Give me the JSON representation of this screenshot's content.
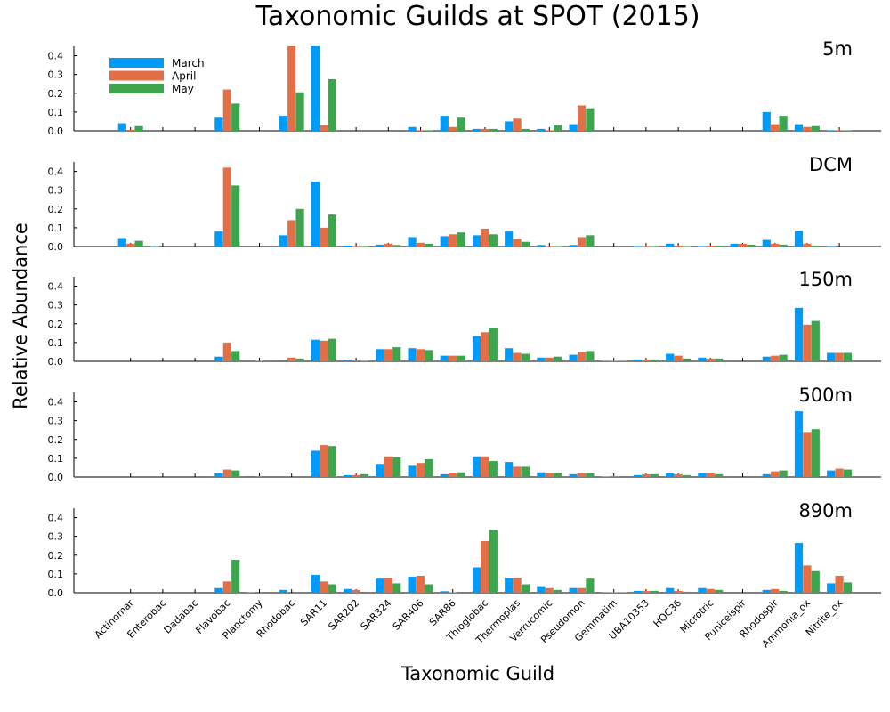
{
  "chart_data": {
    "type": "bar",
    "title": "Taxonomic Guilds at SPOT (2015)",
    "xlabel": "Taxonomic Guild",
    "ylabel": "Relative Abundance",
    "ylim": [
      0,
      0.45
    ],
    "yticks": [
      0.0,
      0.1,
      0.2,
      0.3,
      0.4
    ],
    "ytick_labels": [
      "0.0",
      "0.1",
      "0.2",
      "0.3",
      "0.4"
    ],
    "legend_position": "top-left",
    "categories": [
      "Actinomar",
      "Enterobac",
      "Dadabac",
      "Flavobac",
      "Planctomy",
      "Rhodobac",
      "SAR11",
      "SAR202",
      "SAR324",
      "SAR406",
      "SAR86",
      "Thioglobac",
      "Thermoplas",
      "Verrucomic",
      "Pseudomon",
      "Gemmatim",
      "UBA10353",
      "HOC36",
      "Microtric",
      "Puniceispir",
      "Rhodospir",
      "Ammonia_ox",
      "Nitrite_ox"
    ],
    "series": [
      {
        "name": "March",
        "color": "#009af9"
      },
      {
        "name": "April",
        "color": "#e26f46"
      },
      {
        "name": "May",
        "color": "#3ea44e"
      }
    ],
    "panels": [
      {
        "label": "5m",
        "values": {
          "March": [
            0.04,
            0.0,
            0.0,
            0.07,
            0.0,
            0.08,
            0.45,
            0.0,
            0.0,
            0.02,
            0.08,
            0.01,
            0.05,
            0.01,
            0.035,
            0.0,
            0.0,
            0.0,
            0.0,
            0.0,
            0.1,
            0.035,
            0.003
          ],
          "April": [
            0.005,
            0.0,
            0.0,
            0.22,
            0.0,
            0.45,
            0.03,
            0.0,
            0.0,
            0.003,
            0.02,
            0.01,
            0.065,
            0.003,
            0.135,
            0.0,
            0.0,
            0.0,
            0.0,
            0.0,
            0.035,
            0.02,
            0.003
          ],
          "May": [
            0.025,
            0.0,
            0.0,
            0.145,
            0.0,
            0.205,
            0.275,
            0.0,
            0.0,
            0.003,
            0.07,
            0.01,
            0.01,
            0.03,
            0.12,
            0.0,
            0.0,
            0.0,
            0.0,
            0.0,
            0.08,
            0.025,
            0.002
          ]
        }
      },
      {
        "label": "DCM",
        "values": {
          "March": [
            0.045,
            0.002,
            0.0,
            0.08,
            0.0,
            0.06,
            0.345,
            0.005,
            0.01,
            0.05,
            0.055,
            0.06,
            0.08,
            0.008,
            0.008,
            0.0,
            0.003,
            0.015,
            0.003,
            0.015,
            0.035,
            0.085,
            0.003
          ],
          "April": [
            0.015,
            0.0,
            0.0,
            0.42,
            0.0,
            0.14,
            0.1,
            0.003,
            0.015,
            0.02,
            0.065,
            0.095,
            0.04,
            0.003,
            0.05,
            0.0,
            0.003,
            0.005,
            0.005,
            0.015,
            0.015,
            0.015,
            0.0
          ],
          "May": [
            0.03,
            0.0,
            0.0,
            0.325,
            0.0,
            0.2,
            0.17,
            0.003,
            0.008,
            0.015,
            0.075,
            0.065,
            0.025,
            0.003,
            0.06,
            0.0,
            0.003,
            0.003,
            0.005,
            0.01,
            0.01,
            0.005,
            0.0
          ]
        }
      },
      {
        "label": "150m",
        "values": {
          "March": [
            0.0,
            0.0,
            0.0,
            0.025,
            0.0,
            0.005,
            0.115,
            0.008,
            0.065,
            0.07,
            0.03,
            0.135,
            0.07,
            0.02,
            0.035,
            0.003,
            0.01,
            0.04,
            0.02,
            0.0,
            0.025,
            0.285,
            0.045
          ],
          "April": [
            0.0,
            0.0,
            0.0,
            0.1,
            0.003,
            0.02,
            0.11,
            0.005,
            0.065,
            0.065,
            0.03,
            0.155,
            0.045,
            0.02,
            0.05,
            0.003,
            0.01,
            0.03,
            0.015,
            0.0,
            0.03,
            0.195,
            0.045
          ],
          "May": [
            0.0,
            0.0,
            0.0,
            0.055,
            0.0,
            0.015,
            0.12,
            0.003,
            0.075,
            0.06,
            0.03,
            0.18,
            0.04,
            0.025,
            0.055,
            0.003,
            0.01,
            0.015,
            0.015,
            0.0,
            0.035,
            0.215,
            0.045
          ]
        }
      },
      {
        "label": "500m",
        "values": {
          "March": [
            0.0,
            0.0,
            0.0,
            0.02,
            0.005,
            0.0,
            0.14,
            0.01,
            0.07,
            0.06,
            0.015,
            0.11,
            0.08,
            0.025,
            0.015,
            0.003,
            0.01,
            0.02,
            0.02,
            0.0,
            0.015,
            0.35,
            0.035
          ],
          "April": [
            0.0,
            0.0,
            0.0,
            0.04,
            0.005,
            0.0,
            0.17,
            0.01,
            0.11,
            0.075,
            0.02,
            0.11,
            0.055,
            0.02,
            0.02,
            0.005,
            0.015,
            0.015,
            0.02,
            0.0,
            0.03,
            0.24,
            0.045
          ],
          "May": [
            0.0,
            0.0,
            0.0,
            0.035,
            0.0,
            0.0,
            0.165,
            0.015,
            0.105,
            0.095,
            0.025,
            0.085,
            0.055,
            0.02,
            0.02,
            0.005,
            0.015,
            0.01,
            0.015,
            0.0,
            0.035,
            0.255,
            0.04
          ]
        }
      },
      {
        "label": "890m",
        "values": {
          "March": [
            0.0,
            0.0,
            0.0,
            0.025,
            0.003,
            0.015,
            0.095,
            0.02,
            0.075,
            0.085,
            0.008,
            0.135,
            0.08,
            0.035,
            0.025,
            0.003,
            0.01,
            0.025,
            0.025,
            0.0,
            0.015,
            0.265,
            0.05
          ],
          "April": [
            0.0,
            0.0,
            0.0,
            0.06,
            0.0,
            0.0,
            0.06,
            0.015,
            0.08,
            0.09,
            0.003,
            0.275,
            0.08,
            0.025,
            0.025,
            0.003,
            0.01,
            0.01,
            0.02,
            0.0,
            0.02,
            0.145,
            0.09
          ],
          "May": [
            0.0,
            0.0,
            0.0,
            0.175,
            0.0,
            0.0,
            0.045,
            0.005,
            0.05,
            0.045,
            0.0,
            0.335,
            0.045,
            0.015,
            0.075,
            0.003,
            0.01,
            0.005,
            0.015,
            0.0,
            0.01,
            0.115,
            0.055
          ]
        }
      }
    ]
  }
}
